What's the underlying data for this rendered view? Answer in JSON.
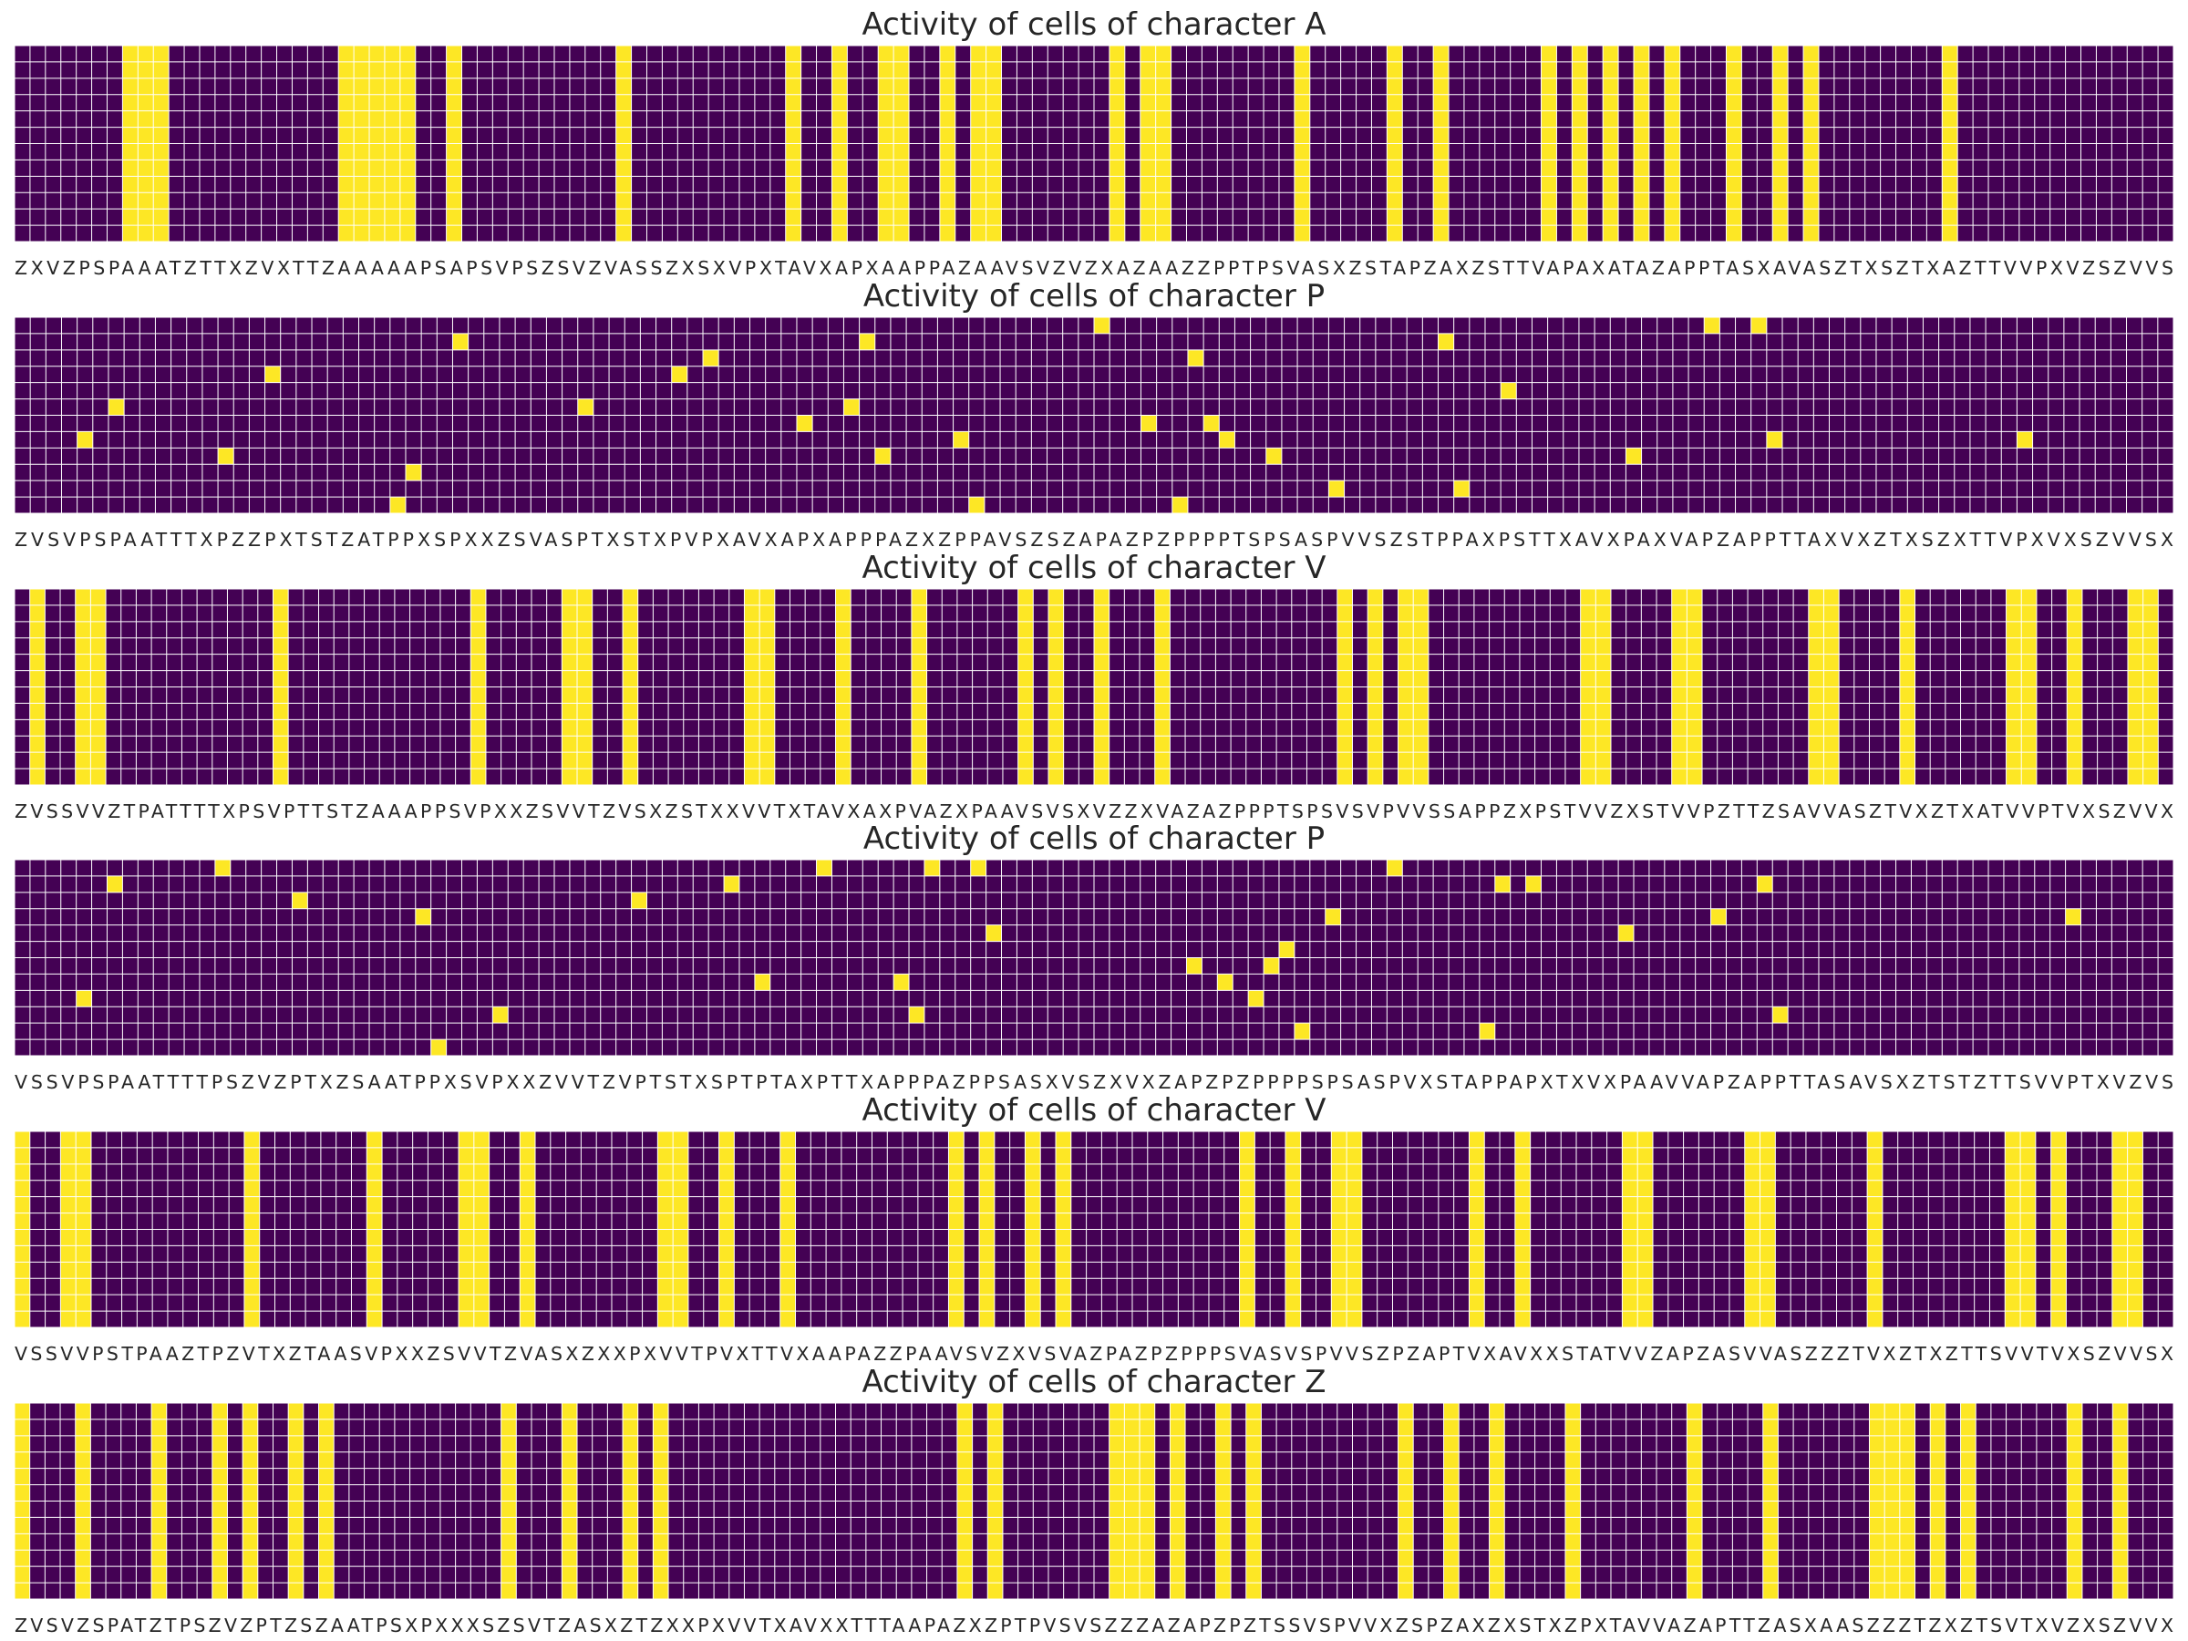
{
  "chart_data": [
    {
      "type": "heatmap",
      "title": "Activity of cells of character A",
      "character": "A",
      "sequence": "ZXVZPSPAAATZTTXZVXTTZAAAAAPSAPSVPSZSVZVASSZXSXVPXTAVXAPXAAPPAZAAVSVZVZXAZAAZZPPTPSVASXZSTAPZAXZSTTVAPAXATAZAPPTASXAVASZTXSZTXAZTTVVPXVZSZVVS",
      "rows": 12,
      "active_cells": "whole-columns",
      "colors": {
        "active": "#fde725",
        "inactive": "#440154",
        "grid": "#ffffff"
      }
    },
    {
      "type": "heatmap",
      "title": "Activity of cells of character P",
      "character": "P",
      "sequence": "ZVSVPSPAATTTXPZZPXTSTZATPPXSPXXZSVASPTXSTXPVPXAVXAPXAPPPAZXZPPAVSZSZAPAZPZPPPPTSPSASPVVSZSTPPAXPSTTXAVXPAXVAPZAPPTTAXVXZTXSZXTTVPXVXSZVVSX",
      "rows": 12,
      "active_cells": "single-cell",
      "colors": {
        "active": "#fde725",
        "inactive": "#440154",
        "grid": "#ffffff"
      }
    },
    {
      "type": "heatmap",
      "title": "Activity of cells of character V",
      "character": "V",
      "sequence": "ZVSSVVZTPATTTTXPSVPTTSTZAAAPPSVPXXZSVVTZVSXZSTXXVVTXTAVXAXPVAZXPAAVSVSXVZZXVAZAZPPPTSPSVSVPVVSSAPPZXPSTVVZXSTVVPZTTZSAVVASZTVXZTXATVVPTVXSZVVX",
      "rows": 12,
      "active_cells": "whole-columns",
      "colors": {
        "active": "#fde725",
        "inactive": "#440154",
        "grid": "#ffffff"
      }
    },
    {
      "type": "heatmap",
      "title": "Activity of cells of character P",
      "character": "P",
      "sequence": "VSSVPSPAATTTTPSZVZPTXZSAATPPXSVPXXZVVTZVPTSTXSPTPTAXPTTXAPPPAZPPSASXVSZXVXZAPZPZPPPPSPSASPVXSTAPPAPXTXVXPAAVVAPZAPPTTASAVSXZTSTZTTSVVPTXVZVS",
      "rows": 12,
      "active_cells": "single-cell",
      "colors": {
        "active": "#fde725",
        "inactive": "#440154",
        "grid": "#ffffff"
      }
    },
    {
      "type": "heatmap",
      "title": "Activity of cells of character V",
      "character": "V",
      "sequence": "VSSVVPSTPAAZTPZVTXZTAASVPXXZSVVTZVASXZXXPXVVTPVXTTVXAAPAZZPAAVSVZXVSVAZPAZPZPPPSVASVSPVVSZPZAPTVXAVXXSTATVVZAPZASVVASZZZTVXZTXZTTSVVTVXSZVVSX",
      "rows": 12,
      "active_cells": "whole-columns",
      "colors": {
        "active": "#fde725",
        "inactive": "#440154",
        "grid": "#ffffff"
      }
    },
    {
      "type": "heatmap",
      "title": "Activity of cells of character Z",
      "character": "Z",
      "sequence": "ZVSVZSPATZTPSZVZPTZSZAATPSXPXXXSZSVTZASXZTZXXPXVVTXAVXXTTTAAPAZXZPTPVSVSZZZAZAPZPZTSSVSPVVXZSPZAXZXSTXZPXTAVVAZAPTTZASXAASZZZTZXZTSVTXVZXSZVVX",
      "rows": 12,
      "active_cells": "whole-columns",
      "colors": {
        "active": "#fde725",
        "inactive": "#440154",
        "grid": "#ffffff"
      }
    }
  ]
}
